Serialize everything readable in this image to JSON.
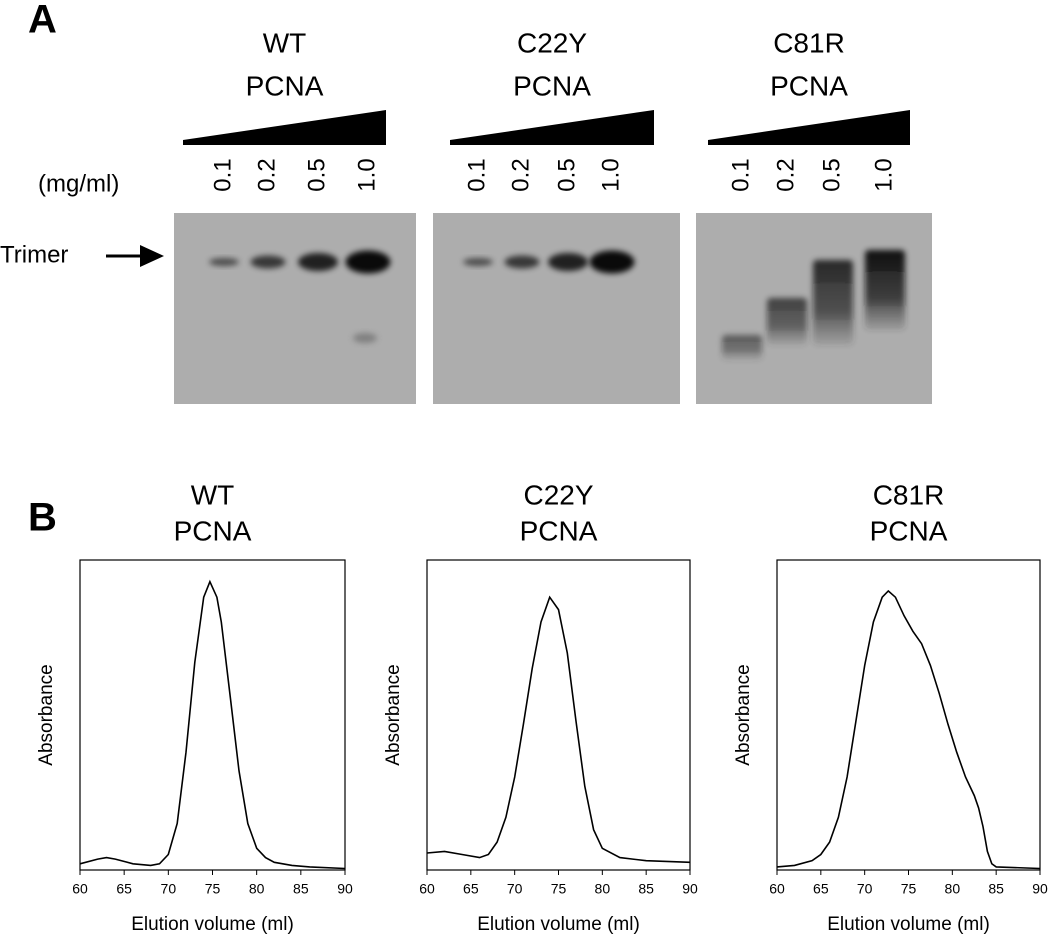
{
  "panel_a": {
    "label": "A",
    "unit_label": "(mg/ml)",
    "band_label": "Trimer",
    "gels": [
      {
        "title": [
          "WT",
          "PCNA"
        ],
        "concentrations": [
          "0.1",
          "0.2",
          "0.5",
          "1.0"
        ]
      },
      {
        "title": [
          "C22Y",
          "PCNA"
        ],
        "concentrations": [
          "0.1",
          "0.2",
          "0.5",
          "1.0"
        ]
      },
      {
        "title": [
          "C81R",
          "PCNA"
        ],
        "concentrations": [
          "0.1",
          "0.2",
          "0.5",
          "1.0"
        ]
      }
    ]
  },
  "panel_b_label": "B",
  "chart_data": [
    {
      "type": "line",
      "title": [
        "WT",
        "PCNA"
      ],
      "x_label": "Elution volume (ml)",
      "y_label": "Absorbance",
      "color": "#000000",
      "xlim": [
        60,
        90
      ],
      "ylim": [
        0,
        1
      ],
      "xticks": [
        60,
        65,
        70,
        75,
        80,
        85,
        90
      ],
      "x": [
        60,
        62,
        63,
        64,
        66,
        68,
        69,
        70,
        71,
        72,
        73,
        74,
        74.7,
        75.5,
        76,
        77,
        78,
        79,
        80,
        81,
        82,
        84,
        86,
        90
      ],
      "values": [
        0.02,
        0.035,
        0.04,
        0.035,
        0.02,
        0.015,
        0.02,
        0.05,
        0.15,
        0.38,
        0.67,
        0.88,
        0.93,
        0.88,
        0.8,
        0.56,
        0.32,
        0.15,
        0.07,
        0.04,
        0.025,
        0.015,
        0.01,
        0.005
      ]
    },
    {
      "type": "line",
      "title": [
        "C22Y",
        "PCNA"
      ],
      "x_label": "Elution volume (ml)",
      "y_label": "Absorbance",
      "color": "#000000",
      "xlim": [
        60,
        90
      ],
      "ylim": [
        0,
        1
      ],
      "xticks": [
        60,
        65,
        70,
        75,
        80,
        85,
        90
      ],
      "x": [
        60,
        62,
        64,
        66,
        67,
        68,
        69,
        70,
        71,
        72,
        73,
        74,
        75,
        76,
        77,
        78,
        79,
        80,
        82,
        85,
        90
      ],
      "values": [
        0.055,
        0.06,
        0.05,
        0.04,
        0.05,
        0.09,
        0.17,
        0.3,
        0.47,
        0.65,
        0.8,
        0.88,
        0.84,
        0.7,
        0.48,
        0.27,
        0.13,
        0.07,
        0.04,
        0.03,
        0.025
      ]
    },
    {
      "type": "line",
      "title": [
        "C81R",
        "PCNA"
      ],
      "x_label": "Elution volume (ml)",
      "y_label": "Absorbance",
      "color": "#000000",
      "xlim": [
        60,
        90
      ],
      "ylim": [
        0,
        1
      ],
      "xticks": [
        60,
        65,
        70,
        75,
        80,
        85,
        90
      ],
      "x": [
        60,
        62,
        64,
        65,
        66,
        67,
        68,
        69,
        70,
        71,
        72,
        72.7,
        73.5,
        74.5,
        75.5,
        76.5,
        77.5,
        78.5,
        79.5,
        80.5,
        81.5,
        82.5,
        83,
        83.5,
        84,
        84.5,
        85,
        90
      ],
      "values": [
        0.01,
        0.015,
        0.03,
        0.05,
        0.09,
        0.17,
        0.3,
        0.48,
        0.66,
        0.8,
        0.88,
        0.9,
        0.88,
        0.82,
        0.77,
        0.73,
        0.66,
        0.57,
        0.47,
        0.38,
        0.3,
        0.24,
        0.2,
        0.14,
        0.06,
        0.02,
        0.01,
        0.005
      ]
    }
  ]
}
